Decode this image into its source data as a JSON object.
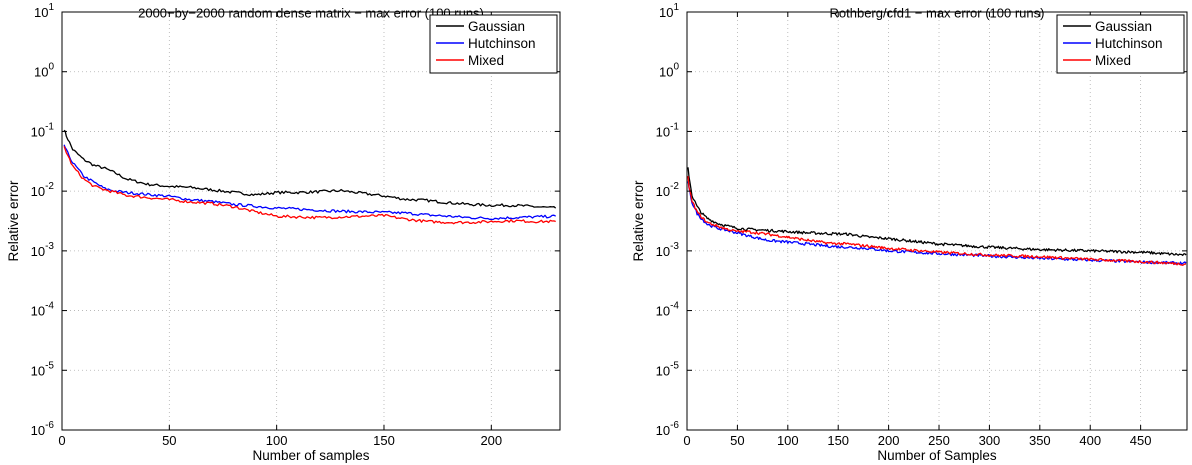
{
  "chart_data": [
    {
      "type": "line",
      "title": "2000−by−2000 random dense matrix − max error (100 runs)",
      "xlabel": "Number of samples",
      "ylabel": "Relative error",
      "xlim": [
        0,
        232
      ],
      "ylim": [
        1e-06,
        10
      ],
      "yscale": "log",
      "grid": true,
      "legend_position": "top-right",
      "xticks": [
        0,
        50,
        100,
        150,
        200
      ],
      "xtick_labels": [
        "0",
        "50",
        "100",
        "150",
        "200"
      ],
      "yticks": [
        -6,
        -5,
        -4,
        -3,
        -2,
        -1,
        0,
        1
      ],
      "ytick_labels": [
        "10^-6",
        "10^-5",
        "10^-4",
        "10^-3",
        "10^-2",
        "10^-1",
        "10^0",
        "10^1"
      ],
      "series": [
        {
          "name": "Gaussian",
          "color": "#000000",
          "x": [
            1,
            2,
            5,
            10,
            15,
            20,
            25,
            30,
            40,
            50,
            60,
            70,
            80,
            90,
            100,
            110,
            120,
            130,
            140,
            150,
            160,
            170,
            180,
            190,
            200,
            210,
            220,
            230
          ],
          "y": [
            0.11,
            0.085,
            0.05,
            0.034,
            0.027,
            0.024,
            0.02,
            0.016,
            0.013,
            0.012,
            0.0115,
            0.0105,
            0.0095,
            0.0087,
            0.0095,
            0.0095,
            0.0098,
            0.0102,
            0.0092,
            0.0083,
            0.0073,
            0.007,
            0.0064,
            0.006,
            0.0058,
            0.0058,
            0.0055,
            0.0052
          ]
        },
        {
          "name": "Hutchinson",
          "color": "#0000ff",
          "x": [
            1,
            2,
            5,
            10,
            15,
            20,
            25,
            30,
            40,
            50,
            60,
            70,
            80,
            90,
            100,
            110,
            120,
            130,
            140,
            150,
            160,
            170,
            180,
            190,
            200,
            210,
            220,
            230
          ],
          "y": [
            0.06,
            0.048,
            0.03,
            0.018,
            0.014,
            0.011,
            0.01,
            0.0095,
            0.0088,
            0.0082,
            0.0072,
            0.0067,
            0.006,
            0.0056,
            0.0052,
            0.005,
            0.0048,
            0.0046,
            0.0045,
            0.0044,
            0.0043,
            0.004,
            0.0038,
            0.0036,
            0.0035,
            0.0036,
            0.0037,
            0.0038
          ]
        },
        {
          "name": "Mixed",
          "color": "#ff0000",
          "x": [
            1,
            2,
            5,
            10,
            15,
            20,
            25,
            30,
            40,
            50,
            60,
            70,
            80,
            90,
            100,
            110,
            120,
            130,
            140,
            150,
            160,
            170,
            180,
            190,
            200,
            210,
            220,
            230
          ],
          "y": [
            0.055,
            0.045,
            0.026,
            0.016,
            0.012,
            0.0105,
            0.0095,
            0.0085,
            0.0078,
            0.0072,
            0.0066,
            0.0062,
            0.0055,
            0.0045,
            0.0038,
            0.0037,
            0.0036,
            0.0037,
            0.0038,
            0.0039,
            0.0034,
            0.0031,
            0.003,
            0.003,
            0.0031,
            0.0032,
            0.0031,
            0.0031
          ]
        }
      ]
    },
    {
      "type": "line",
      "title": "Rothberg/cfd1 − max error (100 runs)",
      "xlabel": "Number of Samples",
      "ylabel": "Relative error",
      "xlim": [
        0,
        496
      ],
      "ylim": [
        1e-06,
        10
      ],
      "yscale": "log",
      "grid": true,
      "legend_position": "top-right",
      "xticks": [
        0,
        50,
        100,
        150,
        200,
        250,
        300,
        350,
        400,
        450
      ],
      "xtick_labels": [
        "0",
        "50",
        "100",
        "150",
        "200",
        "250",
        "300",
        "350",
        "400",
        "450"
      ],
      "yticks": [
        -6,
        -5,
        -4,
        -3,
        -2,
        -1,
        0,
        1
      ],
      "ytick_labels": [
        "10^-6",
        "10^-5",
        "10^-4",
        "10^-3",
        "10^-2",
        "10^-1",
        "10^0",
        "10^1"
      ],
      "series": [
        {
          "name": "Gaussian",
          "color": "#000000",
          "x": [
            1,
            2,
            5,
            10,
            15,
            20,
            30,
            40,
            50,
            60,
            80,
            100,
            120,
            140,
            160,
            180,
            200,
            250,
            300,
            350,
            400,
            450,
            495
          ],
          "y": [
            0.024,
            0.018,
            0.0085,
            0.0055,
            0.0042,
            0.0035,
            0.0029,
            0.0026,
            0.0024,
            0.0023,
            0.0022,
            0.0021,
            0.002,
            0.00195,
            0.0019,
            0.0017,
            0.0016,
            0.0013,
            0.00115,
            0.00105,
            0.001,
            0.00095,
            0.00085
          ]
        },
        {
          "name": "Hutchinson",
          "color": "#0000ff",
          "x": [
            1,
            2,
            5,
            10,
            15,
            20,
            30,
            40,
            50,
            60,
            80,
            100,
            120,
            140,
            160,
            180,
            200,
            250,
            300,
            350,
            400,
            450,
            495
          ],
          "y": [
            0.015,
            0.011,
            0.0065,
            0.0042,
            0.0034,
            0.0028,
            0.0024,
            0.0022,
            0.002,
            0.0018,
            0.0015,
            0.0014,
            0.0013,
            0.0012,
            0.00115,
            0.0011,
            0.001,
            0.0009,
            0.00082,
            0.00075,
            0.0007,
            0.00065,
            0.00062
          ]
        },
        {
          "name": "Mixed",
          "color": "#ff0000",
          "x": [
            1,
            2,
            5,
            10,
            15,
            20,
            30,
            40,
            50,
            60,
            80,
            100,
            120,
            140,
            160,
            180,
            200,
            250,
            300,
            350,
            400,
            450,
            495
          ],
          "y": [
            0.017,
            0.012,
            0.0068,
            0.0045,
            0.0036,
            0.003,
            0.0026,
            0.0023,
            0.0021,
            0.0021,
            0.0019,
            0.0017,
            0.0015,
            0.00135,
            0.0013,
            0.0012,
            0.0011,
            0.00095,
            0.00085,
            0.0008,
            0.00072,
            0.00066,
            0.0006
          ]
        }
      ]
    }
  ]
}
